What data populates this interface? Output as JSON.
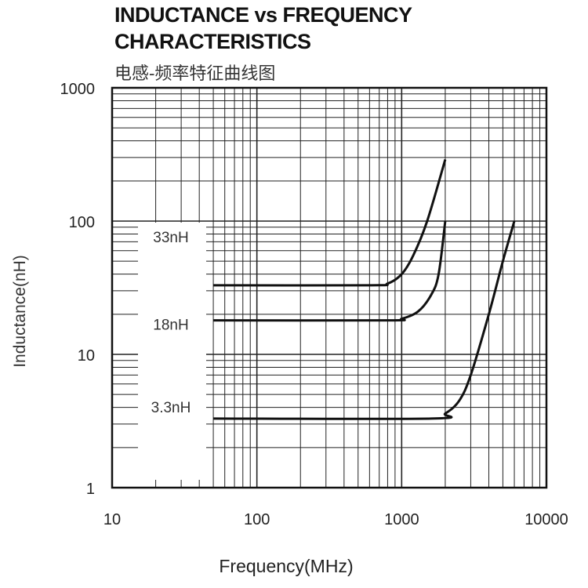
{
  "chart_data": {
    "type": "line",
    "title_line1": "INDUCTANCE vs FREQUENCY",
    "title_line2": "CHARACTERISTICS",
    "subtitle": "电感-频率特征曲线图",
    "xlabel": "Frequency(MHz)",
    "ylabel": "Inductance(nH)",
    "xscale": "log",
    "yscale": "log",
    "xlim": [
      10,
      10000
    ],
    "ylim": [
      1,
      1000
    ],
    "xticks": [
      "10",
      "100",
      "1000",
      "10000"
    ],
    "yticks": [
      "1",
      "10",
      "100",
      "1000"
    ],
    "grid": true,
    "series": [
      {
        "name": "33nH",
        "x": [
          50,
          600,
          800,
          1000,
          1200,
          1500,
          2000
        ],
        "y": [
          33,
          33,
          34,
          40,
          55,
          100,
          290
        ]
      },
      {
        "name": "18nH",
        "x": [
          50,
          800,
          1000,
          1300,
          1600,
          1800,
          2000
        ],
        "y": [
          18,
          18,
          18.5,
          21,
          28,
          40,
          100
        ]
      },
      {
        "name": "3.3nH",
        "x": [
          50,
          1600,
          2000,
          2500,
          3000,
          4000,
          5000,
          6000
        ],
        "y": [
          3.3,
          3.3,
          3.6,
          4.5,
          7,
          20,
          50,
          100
        ]
      }
    ],
    "line_color": "#111111"
  }
}
